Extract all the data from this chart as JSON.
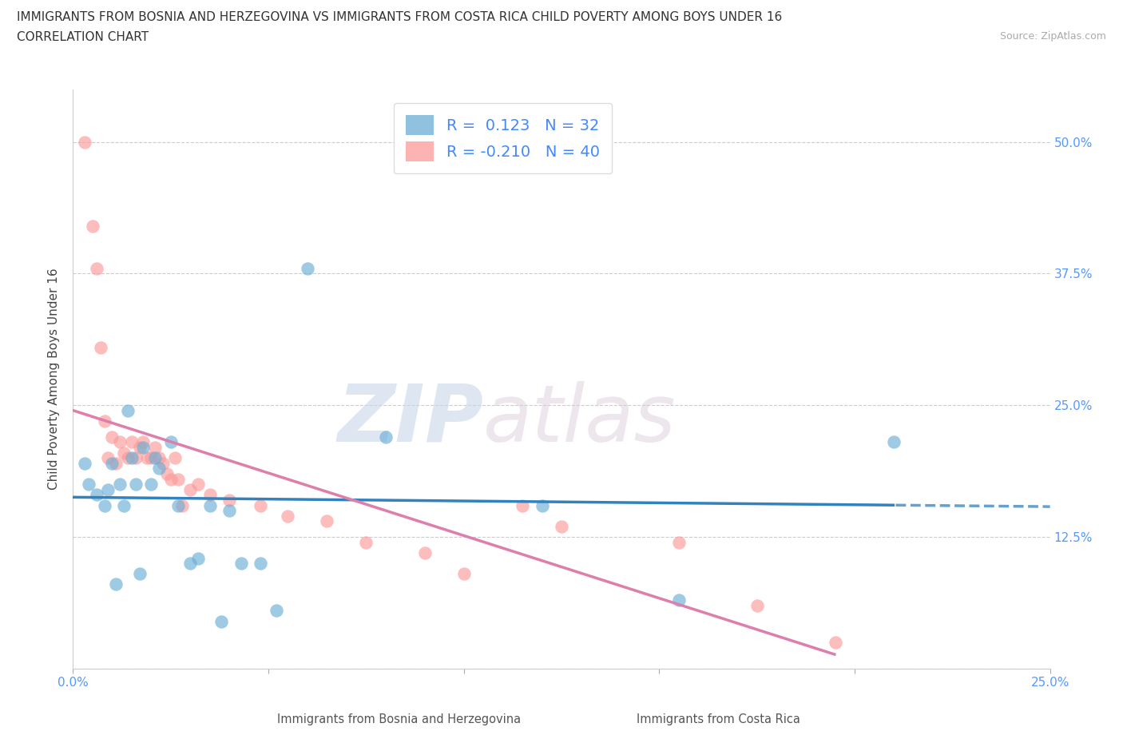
{
  "title_line1": "IMMIGRANTS FROM BOSNIA AND HERZEGOVINA VS IMMIGRANTS FROM COSTA RICA CHILD POVERTY AMONG BOYS UNDER 16",
  "title_line2": "CORRELATION CHART",
  "source_text": "Source: ZipAtlas.com",
  "ylabel": "Child Poverty Among Boys Under 16",
  "xlim": [
    0.0,
    0.25
  ],
  "ylim": [
    0.0,
    0.55
  ],
  "xtick_positions": [
    0.0,
    0.05,
    0.1,
    0.15,
    0.2,
    0.25
  ],
  "xtick_labels": [
    "0.0%",
    "",
    "",
    "",
    "",
    "25.0%"
  ],
  "ytick_positions": [
    0.0,
    0.125,
    0.25,
    0.375,
    0.5
  ],
  "right_ytick_labels": [
    "",
    "12.5%",
    "25.0%",
    "37.5%",
    "50.0%"
  ],
  "color_bosnia": "#6baed6",
  "color_costarica": "#fb9a99",
  "color_line_bosnia": "#3182bd",
  "color_line_costarica": "#de7eab",
  "watermark_zip": "ZIP",
  "watermark_atlas": "atlas",
  "bosnia_scatter_x": [
    0.003,
    0.004,
    0.006,
    0.008,
    0.009,
    0.01,
    0.011,
    0.012,
    0.013,
    0.014,
    0.015,
    0.016,
    0.017,
    0.018,
    0.02,
    0.021,
    0.022,
    0.025,
    0.027,
    0.03,
    0.032,
    0.035,
    0.038,
    0.04,
    0.043,
    0.048,
    0.052,
    0.06,
    0.08,
    0.12,
    0.155,
    0.21
  ],
  "bosnia_scatter_y": [
    0.195,
    0.175,
    0.165,
    0.155,
    0.17,
    0.195,
    0.08,
    0.175,
    0.155,
    0.245,
    0.2,
    0.175,
    0.09,
    0.21,
    0.175,
    0.2,
    0.19,
    0.215,
    0.155,
    0.1,
    0.105,
    0.155,
    0.045,
    0.15,
    0.1,
    0.1,
    0.055,
    0.38,
    0.22,
    0.155,
    0.065,
    0.215
  ],
  "costarica_scatter_x": [
    0.003,
    0.005,
    0.006,
    0.007,
    0.008,
    0.009,
    0.01,
    0.011,
    0.012,
    0.013,
    0.014,
    0.015,
    0.016,
    0.017,
    0.018,
    0.019,
    0.02,
    0.021,
    0.022,
    0.023,
    0.024,
    0.025,
    0.026,
    0.027,
    0.028,
    0.03,
    0.032,
    0.035,
    0.04,
    0.048,
    0.055,
    0.065,
    0.075,
    0.09,
    0.1,
    0.115,
    0.125,
    0.155,
    0.175,
    0.195
  ],
  "costarica_scatter_y": [
    0.5,
    0.42,
    0.38,
    0.305,
    0.235,
    0.2,
    0.22,
    0.195,
    0.215,
    0.205,
    0.2,
    0.215,
    0.2,
    0.21,
    0.215,
    0.2,
    0.2,
    0.21,
    0.2,
    0.195,
    0.185,
    0.18,
    0.2,
    0.18,
    0.155,
    0.17,
    0.175,
    0.165,
    0.16,
    0.155,
    0.145,
    0.14,
    0.12,
    0.11,
    0.09,
    0.155,
    0.135,
    0.12,
    0.06,
    0.025
  ],
  "background_color": "#ffffff",
  "grid_color": "#cccccc",
  "title_fontsize": 11,
  "axis_label_fontsize": 11,
  "tick_fontsize": 11,
  "legend_fontsize": 14
}
